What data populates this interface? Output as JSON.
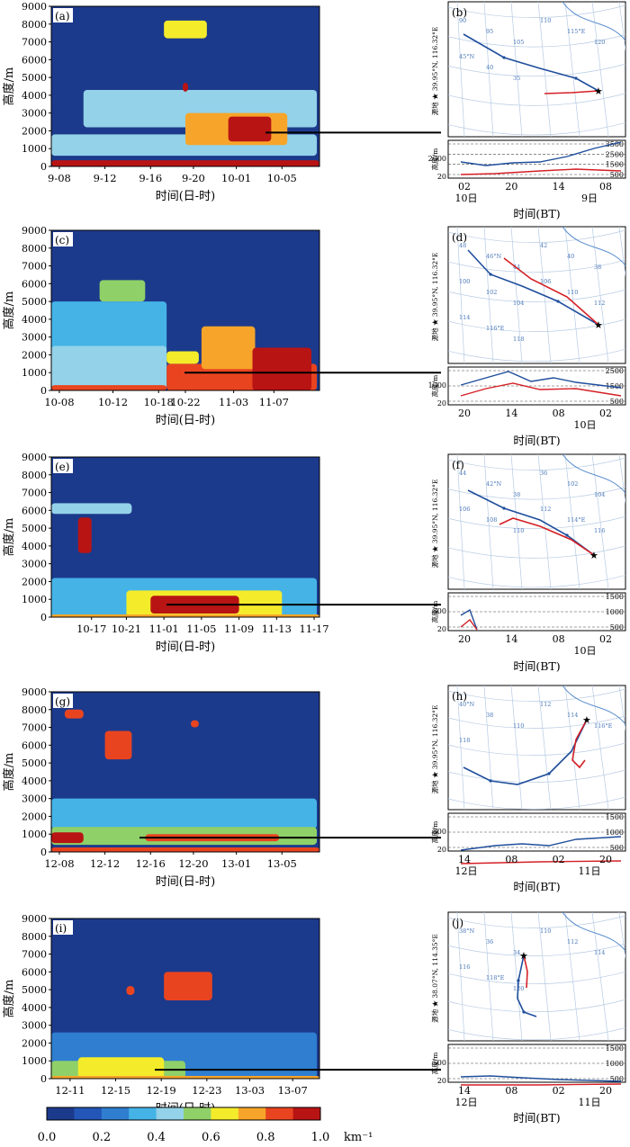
{
  "colorbar": {
    "unit": "km⁻¹",
    "ticks": [
      "0.0",
      "0.2",
      "0.4",
      "0.6",
      "0.8",
      "1.0"
    ],
    "colors": [
      "#1c3a8c",
      "#2356b6",
      "#2f7ed0",
      "#45b3e6",
      "#93d2e8",
      "#8fd069",
      "#f4ec2b",
      "#f7a52a",
      "#e94420",
      "#b81414"
    ]
  },
  "colors": {
    "bg_dark": "#1c3a8c",
    "track_blue": "#1f4e9c",
    "track_red": "#d41f25",
    "coast": "#5b8ecc",
    "grid": "#b7cbe3"
  },
  "chart_data": [
    {
      "type": "heatmap",
      "panel": "(a)",
      "ylabel": "高度/m",
      "xlabel": "时间(日-时)",
      "ylim": [
        0,
        9000
      ],
      "yticks": [
        "0",
        "1000",
        "2000",
        "3000",
        "4000",
        "5000",
        "6000",
        "7000",
        "8000",
        "9000"
      ],
      "xticks": [
        "9-08",
        "9-12",
        "9-16",
        "9-20",
        "10-01",
        "10-05"
      ],
      "xtick_pos": [
        0.03,
        0.2,
        0.37,
        0.53,
        0.69,
        0.86
      ],
      "layers": [
        {
          "t0": 0.12,
          "t1": 0.99,
          "h0": 2200,
          "h1": 4300,
          "v": 0.42
        },
        {
          "t0": 0.0,
          "t1": 0.99,
          "h0": 600,
          "h1": 1800,
          "v": 0.48
        },
        {
          "t0": 0.5,
          "t1": 0.88,
          "h0": 1200,
          "h1": 3000,
          "v": 0.7
        },
        {
          "t0": 0.66,
          "t1": 0.82,
          "h0": 1400,
          "h1": 2800,
          "v": 0.92
        },
        {
          "t0": 0.0,
          "t1": 1.0,
          "h0": 0,
          "h1": 350,
          "v": 0.98
        },
        {
          "t0": 0.42,
          "t1": 0.58,
          "h0": 7200,
          "h1": 8200,
          "v": 0.62
        },
        {
          "t0": 0.49,
          "t1": 0.51,
          "h0": 4200,
          "h1": 4700,
          "v": 0.95
        }
      ],
      "connector_height": 1900
    },
    {
      "type": "heatmap",
      "panel": "(c)",
      "ylabel": "高度/m",
      "xlabel": "时间(日-时)",
      "ylim": [
        0,
        9000
      ],
      "yticks": [
        "0",
        "1000",
        "2000",
        "3000",
        "4000",
        "5000",
        "6000",
        "7000",
        "8000",
        "9000"
      ],
      "xticks": [
        "10-08",
        "10-12",
        "10-18",
        "10-22",
        "11-03",
        "11-07"
      ],
      "xtick_pos": [
        0.03,
        0.23,
        0.4,
        0.5,
        0.68,
        0.83
      ],
      "layers": [
        {
          "t0": 0.0,
          "t1": 0.43,
          "h0": 0,
          "h1": 5000,
          "v": 0.3
        },
        {
          "t0": 0.0,
          "t1": 0.43,
          "h0": 0,
          "h1": 2500,
          "v": 0.4
        },
        {
          "t0": 0.18,
          "t1": 0.35,
          "h0": 5000,
          "h1": 6200,
          "v": 0.55
        },
        {
          "t0": 0.43,
          "t1": 0.99,
          "h0": 0,
          "h1": 1500,
          "v": 0.88
        },
        {
          "t0": 0.56,
          "t1": 0.76,
          "h0": 1200,
          "h1": 3600,
          "v": 0.72
        },
        {
          "t0": 0.75,
          "t1": 0.97,
          "h0": 0,
          "h1": 2400,
          "v": 0.9
        },
        {
          "t0": 0.43,
          "t1": 0.55,
          "h0": 1500,
          "h1": 2200,
          "v": 0.6
        },
        {
          "t0": 0.0,
          "t1": 0.43,
          "h0": 0,
          "h1": 300,
          "v": 0.85
        }
      ],
      "connector_height": 1000
    },
    {
      "type": "heatmap",
      "panel": "(e)",
      "ylabel": "高度/m",
      "xlabel": "时间(日-时)",
      "ylim": [
        0,
        9000
      ],
      "yticks": [
        "0",
        "1000",
        "2000",
        "3000",
        "4000",
        "5000",
        "6000",
        "7000",
        "8000",
        "9000"
      ],
      "xticks": [
        "10-17",
        "10-21",
        "11-01",
        "11-05",
        "11-09",
        "11-13",
        "11-17"
      ],
      "xtick_pos": [
        0.15,
        0.28,
        0.42,
        0.56,
        0.7,
        0.84,
        0.98
      ],
      "layers": [
        {
          "t0": 0.0,
          "t1": 0.3,
          "h0": 5800,
          "h1": 6400,
          "v": 0.4
        },
        {
          "t0": 0.1,
          "t1": 0.15,
          "h0": 3600,
          "h1": 5600,
          "v": 0.9
        },
        {
          "t0": 0.0,
          "t1": 0.99,
          "h0": 0,
          "h1": 2200,
          "v": 0.3
        },
        {
          "t0": 0.28,
          "t1": 0.86,
          "h0": 0,
          "h1": 1500,
          "v": 0.6
        },
        {
          "t0": 0.37,
          "t1": 0.7,
          "h0": 200,
          "h1": 1200,
          "v": 0.93
        },
        {
          "t0": 0.0,
          "t1": 1.0,
          "h0": 0,
          "h1": 150,
          "v": 0.7
        }
      ],
      "connector_height": 700
    },
    {
      "type": "heatmap",
      "panel": "(g)",
      "ylabel": "高度/m",
      "xlabel": "时间(日-时)",
      "ylim": [
        0,
        9000
      ],
      "yticks": [
        "0",
        "1000",
        "2000",
        "3000",
        "4000",
        "5000",
        "6000",
        "7000",
        "8000",
        "9000"
      ],
      "xticks": [
        "12-08",
        "12-12",
        "12-16",
        "12-20",
        "13-01",
        "13-05"
      ],
      "xtick_pos": [
        0.03,
        0.2,
        0.37,
        0.53,
        0.69,
        0.86
      ],
      "layers": [
        {
          "t0": 0.0,
          "t1": 0.99,
          "h0": 1300,
          "h1": 3000,
          "v": 0.3
        },
        {
          "t0": 0.0,
          "t1": 0.99,
          "h0": 400,
          "h1": 1400,
          "v": 0.55
        },
        {
          "t0": 0.0,
          "t1": 0.12,
          "h0": 500,
          "h1": 1100,
          "v": 0.92
        },
        {
          "t0": 0.35,
          "t1": 0.85,
          "h0": 600,
          "h1": 1000,
          "v": 0.88
        },
        {
          "t0": 0.0,
          "t1": 1.0,
          "h0": 0,
          "h1": 250,
          "v": 0.82
        },
        {
          "t0": 0.2,
          "t1": 0.3,
          "h0": 5200,
          "h1": 6800,
          "v": 0.85
        },
        {
          "t0": 0.05,
          "t1": 0.12,
          "h0": 7500,
          "h1": 8000,
          "v": 0.8
        },
        {
          "t0": 0.52,
          "t1": 0.55,
          "h0": 7000,
          "h1": 7400,
          "v": 0.8
        }
      ],
      "connector_height": 800
    },
    {
      "type": "heatmap",
      "panel": "(i)",
      "ylabel": "高度/m",
      "xlabel": "时间(日-时)",
      "ylim": [
        0,
        9000
      ],
      "yticks": [
        "0",
        "1000",
        "2000",
        "3000",
        "4000",
        "5000",
        "6000",
        "7000",
        "8000",
        "9000"
      ],
      "xticks": [
        "12-11",
        "12-15",
        "12-19",
        "12-23",
        "13-03",
        "13-07"
      ],
      "xtick_pos": [
        0.07,
        0.24,
        0.41,
        0.58,
        0.74,
        0.9
      ],
      "layers": [
        {
          "t0": 0.0,
          "t1": 0.99,
          "h0": 0,
          "h1": 2600,
          "v": 0.28
        },
        {
          "t0": 0.0,
          "t1": 0.5,
          "h0": 0,
          "h1": 1000,
          "v": 0.5
        },
        {
          "t0": 0.1,
          "t1": 0.42,
          "h0": 0,
          "h1": 1200,
          "v": 0.6
        },
        {
          "t0": 0.3,
          "t1": 0.4,
          "h0": 200,
          "h1": 1100,
          "v": 0.68
        },
        {
          "t0": 0.42,
          "t1": 0.6,
          "h0": 4400,
          "h1": 6000,
          "v": 0.86
        },
        {
          "t0": 0.28,
          "t1": 0.31,
          "h0": 4700,
          "h1": 5200,
          "v": 0.85
        },
        {
          "t0": 0.0,
          "t1": 1.0,
          "h0": 0,
          "h1": 150,
          "v": 0.72
        }
      ],
      "connector_height": 500
    }
  ],
  "trajectories": [
    {
      "panel": "(b)",
      "side_label": "源地 ★ 39.95°N, 116.32°E",
      "grid_labels": [
        "90",
        "95",
        "105",
        "110",
        "115°E",
        "120",
        "45°N",
        "40",
        "35"
      ],
      "height_ylabel": "高度/m",
      "height_left_ticks": [
        "20",
        "2000"
      ],
      "height_right_ticks": [
        "500",
        "1500",
        "2500",
        "3500"
      ],
      "time_ticks": [
        "02",
        "20",
        "14",
        "08"
      ],
      "day_labels": [
        "10日",
        "9日"
      ],
      "xlabel": "时间(BT)"
    },
    {
      "panel": "(d)",
      "side_label": "源地 ★ 39.95°N, 116.32°E",
      "grid_labels": [
        "48",
        "46°N",
        "44",
        "42",
        "40",
        "38",
        "100",
        "102",
        "104",
        "106",
        "110",
        "112",
        "114",
        "116°E",
        "118"
      ],
      "height_ylabel": "高度/m",
      "height_left_ticks": [
        "20",
        "1000"
      ],
      "height_right_ticks": [
        "500",
        "1500",
        "2500"
      ],
      "time_ticks": [
        "20",
        "14",
        "08",
        "02"
      ],
      "day_labels": [
        "10日"
      ],
      "xlabel": "时间(BT)"
    },
    {
      "panel": "(f)",
      "side_label": "源地 ★ 39.95°N, 116.32°E",
      "grid_labels": [
        "44",
        "42°N",
        "38",
        "36",
        "102",
        "104",
        "106",
        "108",
        "110",
        "112",
        "114°E",
        "116"
      ],
      "height_ylabel": "高度/m",
      "height_left_ticks": [
        "20",
        "800"
      ],
      "height_right_ticks": [
        "500",
        "1000",
        "1500"
      ],
      "time_ticks": [
        "20",
        "14",
        "08",
        "02"
      ],
      "day_labels": [
        "10日"
      ],
      "xlabel": "时间(BT)"
    },
    {
      "panel": "(h)",
      "side_label": "源地 ★ 39.95°N, 116.32°E",
      "grid_labels": [
        "40°N",
        "38",
        "110",
        "112",
        "114",
        "116°E",
        "118"
      ],
      "height_ylabel": "高度/m",
      "height_left_ticks": [
        "20",
        "800"
      ],
      "height_right_ticks": [
        "500",
        "1000",
        "1500"
      ],
      "time_ticks": [
        "14",
        "08",
        "02",
        "20"
      ],
      "day_labels": [
        "12日",
        "11日"
      ],
      "xlabel": "时间(BT)"
    },
    {
      "panel": "(j)",
      "side_label": "源地 ★ 38.07°N, 114.35°E",
      "grid_labels": [
        "38°N",
        "36",
        "34",
        "110",
        "112",
        "114",
        "116",
        "118°E",
        "120"
      ],
      "height_ylabel": "高度/m",
      "height_left_ticks": [
        "20",
        "500"
      ],
      "height_right_ticks": [
        "500",
        "1000",
        "1500"
      ],
      "time_ticks": [
        "14",
        "08",
        "02",
        "20"
      ],
      "day_labels": [
        "12日",
        "11日"
      ],
      "xlabel": "时间(BT)"
    }
  ]
}
